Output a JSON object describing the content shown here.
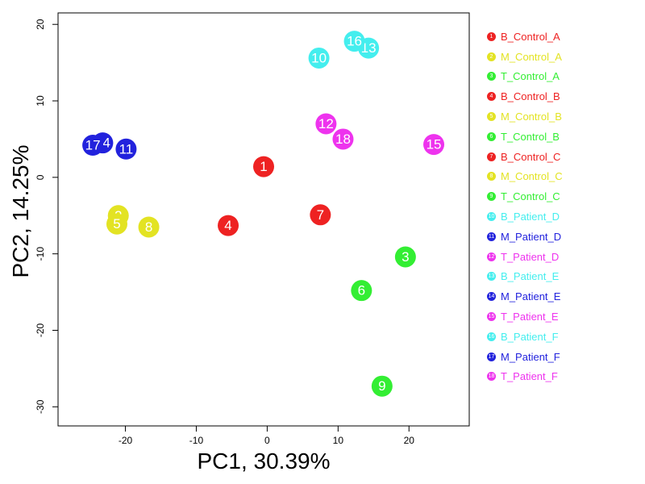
{
  "chart_data": {
    "type": "scatter",
    "xlabel": "PC1, 30.39%",
    "ylabel": "PC2, 14.25%",
    "xlim": [
      -29.5,
      28.5
    ],
    "ylim": [
      -32.5,
      21.5
    ],
    "x_ticks": [
      -20,
      -10,
      0,
      10,
      20
    ],
    "y_ticks": [
      -30,
      -20,
      -10,
      0,
      10,
      20
    ],
    "grid": false,
    "legend_position": "right",
    "points": [
      {
        "id": "1",
        "label": "B_Control_A",
        "x": -0.5,
        "y": 1.4,
        "color": "#ee2222"
      },
      {
        "id": "2",
        "label": "M_Control_A",
        "x": -21.0,
        "y": -5.0,
        "color": "#e3e323"
      },
      {
        "id": "3",
        "label": "T_Control_A",
        "x": 19.5,
        "y": -10.4,
        "color": "#33ee33"
      },
      {
        "id": "4",
        "label": "B_Control_B",
        "x": -5.5,
        "y": -6.3,
        "color": "#ee2222"
      },
      {
        "id": "5",
        "label": "M_Control_B",
        "x": -21.2,
        "y": -6.1,
        "color": "#e3e323"
      },
      {
        "id": "6",
        "label": "T_Control_B",
        "x": 13.3,
        "y": -14.8,
        "color": "#33ee33"
      },
      {
        "id": "7",
        "label": "B_Control_C",
        "x": 7.5,
        "y": -4.9,
        "color": "#ee2222"
      },
      {
        "id": "8",
        "label": "M_Control_C",
        "x": -16.7,
        "y": -6.5,
        "color": "#e3e323"
      },
      {
        "id": "9",
        "label": "T_Control_C",
        "x": 16.2,
        "y": -27.3,
        "color": "#33ee33"
      },
      {
        "id": "10",
        "label": "B_Patient_D",
        "x": 7.3,
        "y": 15.6,
        "color": "#44eeee"
      },
      {
        "id": "11",
        "label": "M_Patient_D",
        "x": -19.9,
        "y": 3.7,
        "color": "#2222dd"
      },
      {
        "id": "12",
        "label": "T_Patient_D",
        "x": 8.3,
        "y": 7.0,
        "color": "#ee33ee"
      },
      {
        "id": "13",
        "label": "B_Patient_E",
        "x": 14.3,
        "y": 16.9,
        "color": "#44eeee"
      },
      {
        "id": "14",
        "label": "M_Patient_E",
        "x": -23.2,
        "y": 4.5,
        "color": "#2222dd"
      },
      {
        "id": "15",
        "label": "T_Patient_E",
        "x": 23.5,
        "y": 4.3,
        "color": "#ee33ee"
      },
      {
        "id": "16",
        "label": "B_Patient_F",
        "x": 12.3,
        "y": 17.8,
        "color": "#44eeee"
      },
      {
        "id": "17",
        "label": "M_Patient_F",
        "x": -24.6,
        "y": 4.2,
        "color": "#2222dd"
      },
      {
        "id": "18",
        "label": "T_Patient_F",
        "x": 10.7,
        "y": 5.0,
        "color": "#ee33ee"
      }
    ]
  }
}
